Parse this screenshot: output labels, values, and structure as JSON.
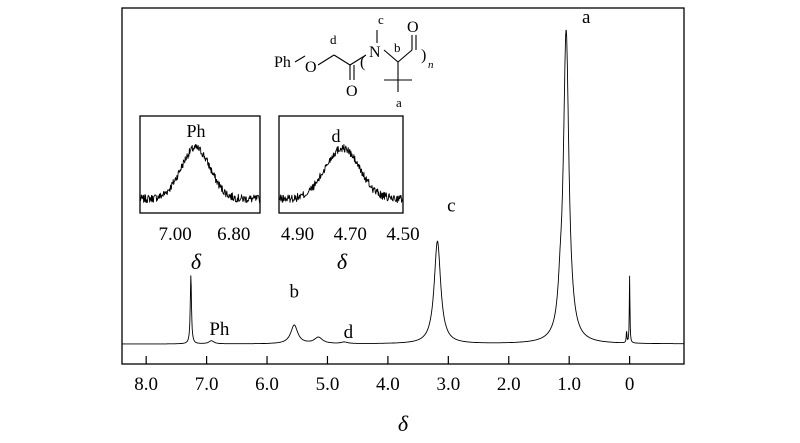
{
  "chart_data": [
    {
      "type": "line",
      "xlabel": "δ",
      "x_ticks": [
        "8.0",
        "7.0",
        "6.0",
        "5.0",
        "4.0",
        "3.0",
        "2.0",
        "1.0",
        "0"
      ],
      "x_tick_values": [
        8.0,
        7.0,
        6.0,
        5.0,
        4.0,
        3.0,
        2.0,
        1.0,
        0.0
      ],
      "xlim": [
        8.4,
        -0.9
      ],
      "x_reversed": true,
      "peaks": [
        {
          "x": 7.26,
          "height": 0.22,
          "label": ""
        },
        {
          "x": 6.92,
          "height": 0.01,
          "label": "Ph"
        },
        {
          "x": 5.55,
          "height": 0.06,
          "label": "b"
        },
        {
          "x": 5.15,
          "height": 0.02,
          "label": ""
        },
        {
          "x": 4.72,
          "height": 0.005,
          "label": "d"
        },
        {
          "x": 3.18,
          "height": 0.33,
          "label": "c"
        },
        {
          "x": 1.05,
          "height": 1.0,
          "label": "a"
        },
        {
          "x": 0.05,
          "height": 0.04,
          "label": ""
        },
        {
          "x": 0.0,
          "height": 0.22,
          "label": ""
        }
      ]
    },
    {
      "type": "line",
      "inset": "Ph",
      "xlabel": "δ",
      "x_ticks": [
        "7.00",
        "6.80"
      ],
      "x_tick_values": [
        7.0,
        6.8
      ],
      "xlim": [
        7.12,
        6.71
      ],
      "x_reversed": true,
      "peaks": [
        {
          "x": 6.93,
          "height": 1.0,
          "label": "Ph"
        }
      ]
    },
    {
      "type": "line",
      "inset": "d",
      "xlabel": "δ",
      "x_ticks": [
        "4.90",
        "4.70",
        "4.50"
      ],
      "x_tick_values": [
        4.9,
        4.7,
        4.5
      ],
      "xlim": [
        4.97,
        4.5
      ],
      "x_reversed": true,
      "peaks": [
        {
          "x": 4.73,
          "height": 1.0,
          "label": "d"
        }
      ]
    }
  ],
  "structure": {
    "group_left": "Ph",
    "oxygen": "O",
    "nitrogen": "N",
    "label_c": "c",
    "label_d": "d",
    "label_b": "b",
    "label_a": "a",
    "carbonyl_o_left": "O",
    "carbonyl_o_right": "O",
    "repeat": "n"
  }
}
